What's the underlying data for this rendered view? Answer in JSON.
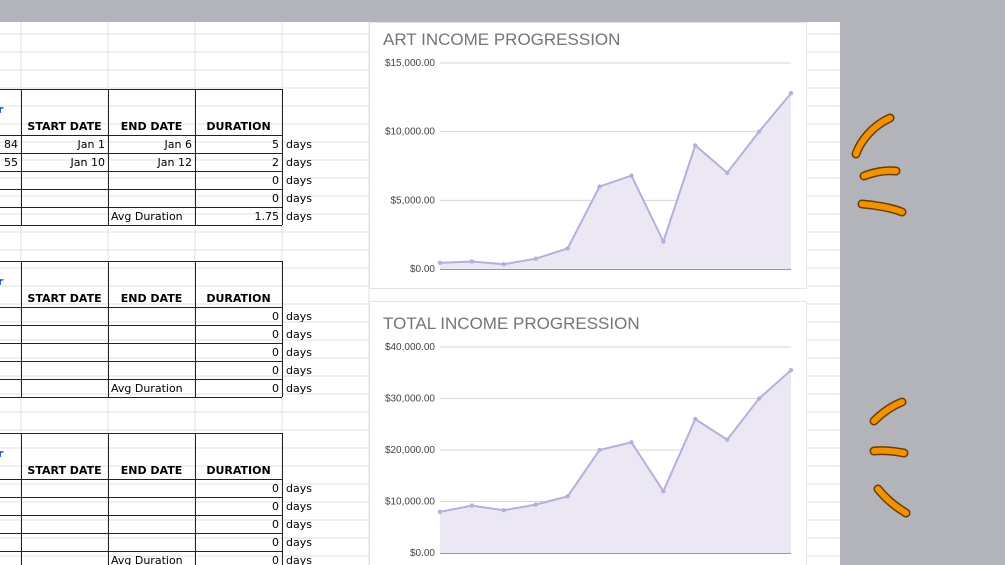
{
  "tables": [
    {
      "headers": [
        "START DATE",
        "END DATE",
        "DURATION"
      ],
      "rows": [
        {
          "left": "84",
          "start": "Jan 1",
          "end": "Jan 6",
          "duration": "5",
          "unit": "days"
        },
        {
          "left": "55",
          "start": "Jan 10",
          "end": "Jan 12",
          "duration": "2",
          "unit": "days"
        },
        {
          "left": "",
          "start": "",
          "end": "",
          "duration": "0",
          "unit": "days"
        },
        {
          "left": "",
          "start": "",
          "end": "",
          "duration": "0",
          "unit": "days"
        },
        {
          "left": "",
          "start": "",
          "end": "Avg Duration",
          "duration": "1.75",
          "unit": "days"
        }
      ]
    },
    {
      "headers": [
        "START DATE",
        "END DATE",
        "DURATION"
      ],
      "rows": [
        {
          "left": "",
          "start": "",
          "end": "",
          "duration": "0",
          "unit": "days"
        },
        {
          "left": "",
          "start": "",
          "end": "",
          "duration": "0",
          "unit": "days"
        },
        {
          "left": "",
          "start": "",
          "end": "",
          "duration": "0",
          "unit": "days"
        },
        {
          "left": "",
          "start": "",
          "end": "",
          "duration": "0",
          "unit": "days"
        },
        {
          "left": "",
          "start": "",
          "end": "Avg Duration",
          "duration": "0",
          "unit": "days"
        }
      ]
    },
    {
      "headers": [
        "START DATE",
        "END DATE",
        "DURATION"
      ],
      "rows": [
        {
          "left": "",
          "start": "",
          "end": "",
          "duration": "0",
          "unit": "days"
        },
        {
          "left": "",
          "start": "",
          "end": "",
          "duration": "0",
          "unit": "days"
        },
        {
          "left": "",
          "start": "",
          "end": "",
          "duration": "0",
          "unit": "days"
        },
        {
          "left": "",
          "start": "",
          "end": "",
          "duration": "0",
          "unit": "days"
        },
        {
          "left": "",
          "start": "",
          "end": "Avg Duration",
          "duration": "0",
          "unit": "days"
        }
      ]
    }
  ],
  "chart_data": [
    {
      "type": "area",
      "title": "ART INCOME PROGRESSION",
      "ylim": [
        0,
        15000
      ],
      "yticks": [
        "$0.00",
        "$5,000.00",
        "$10,000.00",
        "$15,000.00"
      ],
      "values": [
        450,
        550,
        350,
        750,
        1500,
        6000,
        6800,
        2000,
        9000,
        7000,
        10000,
        12800
      ],
      "color": "#b9aedb",
      "fill": "#ebe8f4",
      "grid": true
    },
    {
      "type": "area",
      "title": "TOTAL INCOME PROGRESSION",
      "ylim": [
        0,
        40000
      ],
      "yticks": [
        "$0.00",
        "$10,000.00",
        "$20,000.00",
        "$30,000.00",
        "$40,000.00"
      ],
      "values": [
        8000,
        9200,
        8300,
        9400,
        11000,
        20000,
        21500,
        12000,
        26000,
        22000,
        30000,
        35500
      ],
      "color": "#b9aedb",
      "fill": "#ebe8f4",
      "grid": true
    }
  ],
  "colors": {
    "background": "#b3b3ba",
    "accent": "#f39200",
    "table_border": "#222222",
    "partial_header_text": "#1155cc"
  },
  "icons": [
    "sparkle-stroke-icon"
  ]
}
